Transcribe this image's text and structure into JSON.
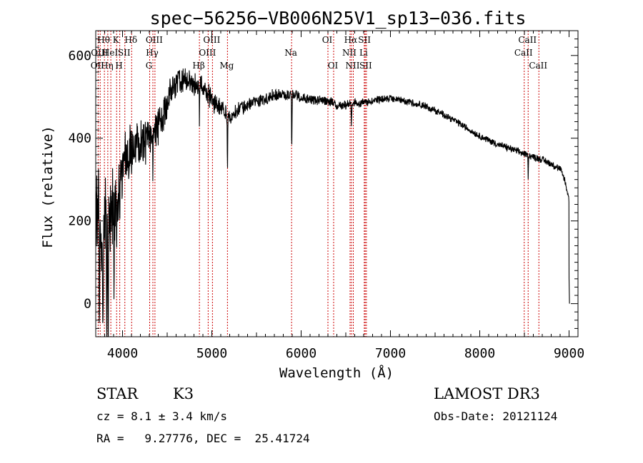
{
  "chart_data": {
    "type": "line",
    "title": "spec−56256−VB006N25V1_sp13−036.fits",
    "xlabel": "Wavelength (Å)",
    "ylabel": "Flux (relative)",
    "xlim": [
      3700,
      9100
    ],
    "ylim": [
      -80,
      660
    ],
    "xticks": [
      4000,
      5000,
      6000,
      7000,
      8000,
      9000
    ],
    "xtick_labels": [
      "4000",
      "5000",
      "6000",
      "7000",
      "8000",
      "9000"
    ],
    "yticks": [
      0,
      200,
      400,
      600
    ],
    "ytick_labels": [
      "0",
      "200",
      "400",
      "600"
    ],
    "continuum": [
      [
        3700,
        200
      ],
      [
        3800,
        190
      ],
      [
        3900,
        220
      ],
      [
        3950,
        260
      ],
      [
        4000,
        320
      ],
      [
        4050,
        360
      ],
      [
        4100,
        370
      ],
      [
        4200,
        385
      ],
      [
        4300,
        400
      ],
      [
        4400,
        430
      ],
      [
        4500,
        480
      ],
      [
        4550,
        520
      ],
      [
        4600,
        530
      ],
      [
        4700,
        540
      ],
      [
        4800,
        530
      ],
      [
        4900,
        525
      ],
      [
        5000,
        490
      ],
      [
        5100,
        475
      ],
      [
        5200,
        450
      ],
      [
        5300,
        470
      ],
      [
        5400,
        480
      ],
      [
        5500,
        490
      ],
      [
        5600,
        495
      ],
      [
        5700,
        505
      ],
      [
        5800,
        505
      ],
      [
        5900,
        505
      ],
      [
        6000,
        500
      ],
      [
        6100,
        495
      ],
      [
        6200,
        490
      ],
      [
        6300,
        490
      ],
      [
        6400,
        480
      ],
      [
        6500,
        480
      ],
      [
        6600,
        485
      ],
      [
        6700,
        485
      ],
      [
        6800,
        490
      ],
      [
        6900,
        495
      ],
      [
        7000,
        495
      ],
      [
        7100,
        492
      ],
      [
        7200,
        488
      ],
      [
        7300,
        483
      ],
      [
        7400,
        476
      ],
      [
        7500,
        467
      ],
      [
        7600,
        457
      ],
      [
        7700,
        445
      ],
      [
        7800,
        432
      ],
      [
        7900,
        418
      ],
      [
        8000,
        405
      ],
      [
        8100,
        395
      ],
      [
        8200,
        385
      ],
      [
        8300,
        378
      ],
      [
        8400,
        370
      ],
      [
        8500,
        362
      ],
      [
        8600,
        355
      ],
      [
        8700,
        348
      ],
      [
        8800,
        338
      ],
      [
        8900,
        325
      ],
      [
        8950,
        300
      ],
      [
        9000,
        250
      ]
    ],
    "noise": [
      [
        3700,
        110
      ],
      [
        3900,
        95
      ],
      [
        4000,
        60
      ],
      [
        4200,
        48
      ],
      [
        4400,
        40
      ],
      [
        4600,
        32
      ],
      [
        4800,
        26
      ],
      [
        5000,
        22
      ],
      [
        5200,
        16
      ],
      [
        5500,
        13
      ],
      [
        6000,
        11
      ],
      [
        7000,
        8
      ],
      [
        8000,
        7
      ],
      [
        9000,
        8
      ]
    ],
    "absorption_features": [
      {
        "wavelength": 3740,
        "depth": 260
      },
      {
        "wavelength": 3780,
        "depth": 320
      },
      {
        "wavelength": 3822,
        "depth": 420
      },
      {
        "wavelength": 3840,
        "depth": 500
      },
      {
        "wavelength": 3905,
        "depth": 300
      },
      {
        "wavelength": 3934,
        "depth": 160
      },
      {
        "wavelength": 3969,
        "depth": 150
      },
      {
        "wavelength": 4340,
        "depth": 90
      },
      {
        "wavelength": 4861,
        "depth": 70
      },
      {
        "wavelength": 5175,
        "depth": 150
      },
      {
        "wavelength": 5895,
        "depth": 150
      },
      {
        "wavelength": 6563,
        "depth": 60
      },
      {
        "wavelength": 8542,
        "depth": 50
      }
    ],
    "end_points": [
      [
        9000,
        60
      ],
      [
        9005,
        0
      ]
    ],
    "line_markers": [
      {
        "wavelength": 3727,
        "label": "OII",
        "row": 2
      },
      {
        "wavelength": 3750,
        "label": "OIII",
        "row": 1
      },
      {
        "wavelength": 3797,
        "label": "Hθ",
        "row": 0
      },
      {
        "wavelength": 3835,
        "label": "Hη",
        "row": 2
      },
      {
        "wavelength": 3869,
        "label": "HeI",
        "row": 1
      },
      {
        "wavelength": 3934,
        "label": "K",
        "row": 0
      },
      {
        "wavelength": 3969,
        "label": "H",
        "row": 2
      },
      {
        "wavelength": 4026,
        "label": "SII",
        "row": 1
      },
      {
        "wavelength": 4102,
        "label": "Hδ",
        "row": 0
      },
      {
        "wavelength": 4304,
        "label": "G",
        "row": 2
      },
      {
        "wavelength": 4340,
        "label": "Hγ",
        "row": 1
      },
      {
        "wavelength": 4363,
        "label": "OIII",
        "row": 0
      },
      {
        "wavelength": 4861,
        "label": "Hβ",
        "row": 2
      },
      {
        "wavelength": 4959,
        "label": "OIII",
        "row": 1
      },
      {
        "wavelength": 5007,
        "label": "OIII",
        "row": 0
      },
      {
        "wavelength": 5175,
        "label": "Mg",
        "row": 2
      },
      {
        "wavelength": 5893,
        "label": "Na",
        "row": 1
      },
      {
        "wavelength": 6300,
        "label": "OI",
        "row": 0
      },
      {
        "wavelength": 6364,
        "label": "OI",
        "row": 2
      },
      {
        "wavelength": 6548,
        "label": "NII",
        "row": 1
      },
      {
        "wavelength": 6563,
        "label": "Hα",
        "row": 0
      },
      {
        "wavelength": 6584,
        "label": "NII",
        "row": 2
      },
      {
        "wavelength": 6707,
        "label": "Li",
        "row": 1
      },
      {
        "wavelength": 6717,
        "label": "SII",
        "row": 0
      },
      {
        "wavelength": 6731,
        "label": "SII",
        "row": 2
      },
      {
        "wavelength": 8498,
        "label": "CaII",
        "row": 1
      },
      {
        "wavelength": 8542,
        "label": "CaII",
        "row": 0
      },
      {
        "wavelength": 8662,
        "label": "CaII",
        "row": 2
      }
    ],
    "marker_color": "#cc0000",
    "line_color": "#000000"
  },
  "info": {
    "class_label": "STAR",
    "subclass": "K3",
    "survey": "LAMOST DR3",
    "redshift": "cz = 8.1 ± 3.4 km/s",
    "obs_date": "Obs-Date: 20121124",
    "coords": "RA =   9.27776, DEC =  25.41724"
  }
}
